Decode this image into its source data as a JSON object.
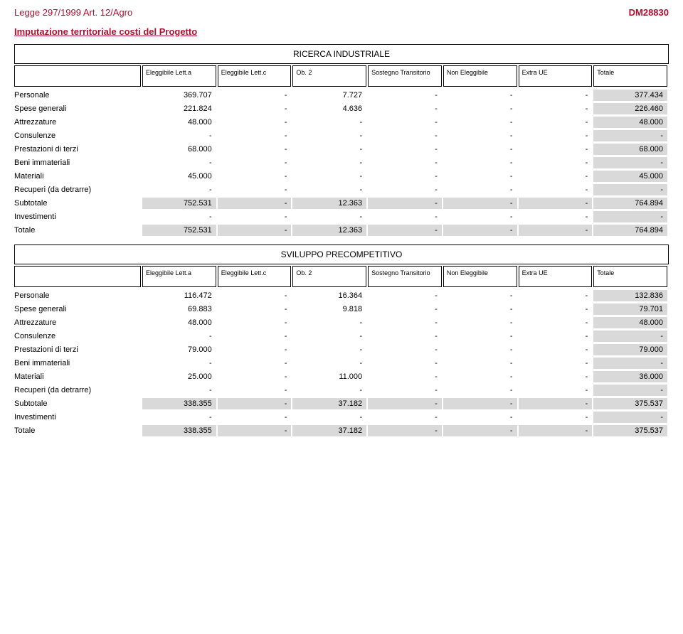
{
  "header": {
    "left": "Legge 297/1999 Art. 12/Agro",
    "right": "DM28830"
  },
  "sectionTitle": "Imputazione territoriale costi del Progetto",
  "columns": [
    "Eleggibile Lett.a",
    "Eleggibile Lett.c",
    "Ob. 2",
    "Sostegno Transitorio",
    "Non Eleggibile",
    "Extra UE",
    "Totale"
  ],
  "tables": [
    {
      "title": "RICERCA INDUSTRIALE",
      "rows": [
        {
          "label": "Personale",
          "hl": false,
          "cells": [
            "369.707",
            "-",
            "7.727",
            "-",
            "-",
            "-",
            "377.434"
          ]
        },
        {
          "label": "Spese generali",
          "hl": false,
          "cells": [
            "221.824",
            "-",
            "4.636",
            "-",
            "-",
            "-",
            "226.460"
          ]
        },
        {
          "label": "Attrezzature",
          "hl": false,
          "cells": [
            "48.000",
            "-",
            "-",
            "-",
            "-",
            "-",
            "48.000"
          ]
        },
        {
          "label": "Consulenze",
          "hl": false,
          "cells": [
            "-",
            "-",
            "-",
            "-",
            "-",
            "-",
            "-"
          ]
        },
        {
          "label": "Prestazioni di terzi",
          "hl": false,
          "cells": [
            "68.000",
            "-",
            "-",
            "-",
            "-",
            "-",
            "68.000"
          ]
        },
        {
          "label": "Beni immateriali",
          "hl": false,
          "cells": [
            "-",
            "-",
            "-",
            "-",
            "-",
            "-",
            "-"
          ]
        },
        {
          "label": "Materiali",
          "hl": false,
          "cells": [
            "45.000",
            "-",
            "-",
            "-",
            "-",
            "-",
            "45.000"
          ]
        },
        {
          "label": "Recuperi (da detrarre)",
          "hl": false,
          "cells": [
            "-",
            "-",
            "-",
            "-",
            "-",
            "-",
            "-"
          ]
        },
        {
          "label": "Subtotale",
          "hl": true,
          "cells": [
            "752.531",
            "-",
            "12.363",
            "-",
            "-",
            "-",
            "764.894"
          ]
        },
        {
          "label": "Investimenti",
          "hl": false,
          "cells": [
            "-",
            "-",
            "-",
            "-",
            "-",
            "-",
            "-"
          ]
        },
        {
          "label": "Totale",
          "hl": true,
          "cells": [
            "752.531",
            "-",
            "12.363",
            "-",
            "-",
            "-",
            "764.894"
          ]
        }
      ]
    },
    {
      "title": "SVILUPPO PRECOMPETITIVO",
      "rows": [
        {
          "label": "Personale",
          "hl": false,
          "cells": [
            "116.472",
            "-",
            "16.364",
            "-",
            "-",
            "-",
            "132.836"
          ]
        },
        {
          "label": "Spese generali",
          "hl": false,
          "cells": [
            "69.883",
            "-",
            "9.818",
            "-",
            "-",
            "-",
            "79.701"
          ]
        },
        {
          "label": "Attrezzature",
          "hl": false,
          "cells": [
            "48.000",
            "-",
            "-",
            "-",
            "-",
            "-",
            "48.000"
          ]
        },
        {
          "label": "Consulenze",
          "hl": false,
          "cells": [
            "-",
            "-",
            "-",
            "-",
            "-",
            "-",
            "-"
          ]
        },
        {
          "label": "Prestazioni di terzi",
          "hl": false,
          "cells": [
            "79.000",
            "-",
            "-",
            "-",
            "-",
            "-",
            "79.000"
          ]
        },
        {
          "label": "Beni immateriali",
          "hl": false,
          "cells": [
            "-",
            "-",
            "-",
            "-",
            "-",
            "-",
            "-"
          ]
        },
        {
          "label": "Materiali",
          "hl": false,
          "cells": [
            "25.000",
            "-",
            "11.000",
            "-",
            "-",
            "-",
            "36.000"
          ]
        },
        {
          "label": "Recuperi (da detrarre)",
          "hl": false,
          "cells": [
            "-",
            "-",
            "-",
            "-",
            "-",
            "-",
            "-"
          ]
        },
        {
          "label": "Subtotale",
          "hl": true,
          "cells": [
            "338.355",
            "-",
            "37.182",
            "-",
            "-",
            "-",
            "375.537"
          ]
        },
        {
          "label": "Investimenti",
          "hl": false,
          "cells": [
            "-",
            "-",
            "-",
            "-",
            "-",
            "-",
            "-"
          ]
        },
        {
          "label": "Totale",
          "hl": true,
          "cells": [
            "338.355",
            "-",
            "37.182",
            "-",
            "-",
            "-",
            "375.537"
          ]
        }
      ]
    }
  ]
}
